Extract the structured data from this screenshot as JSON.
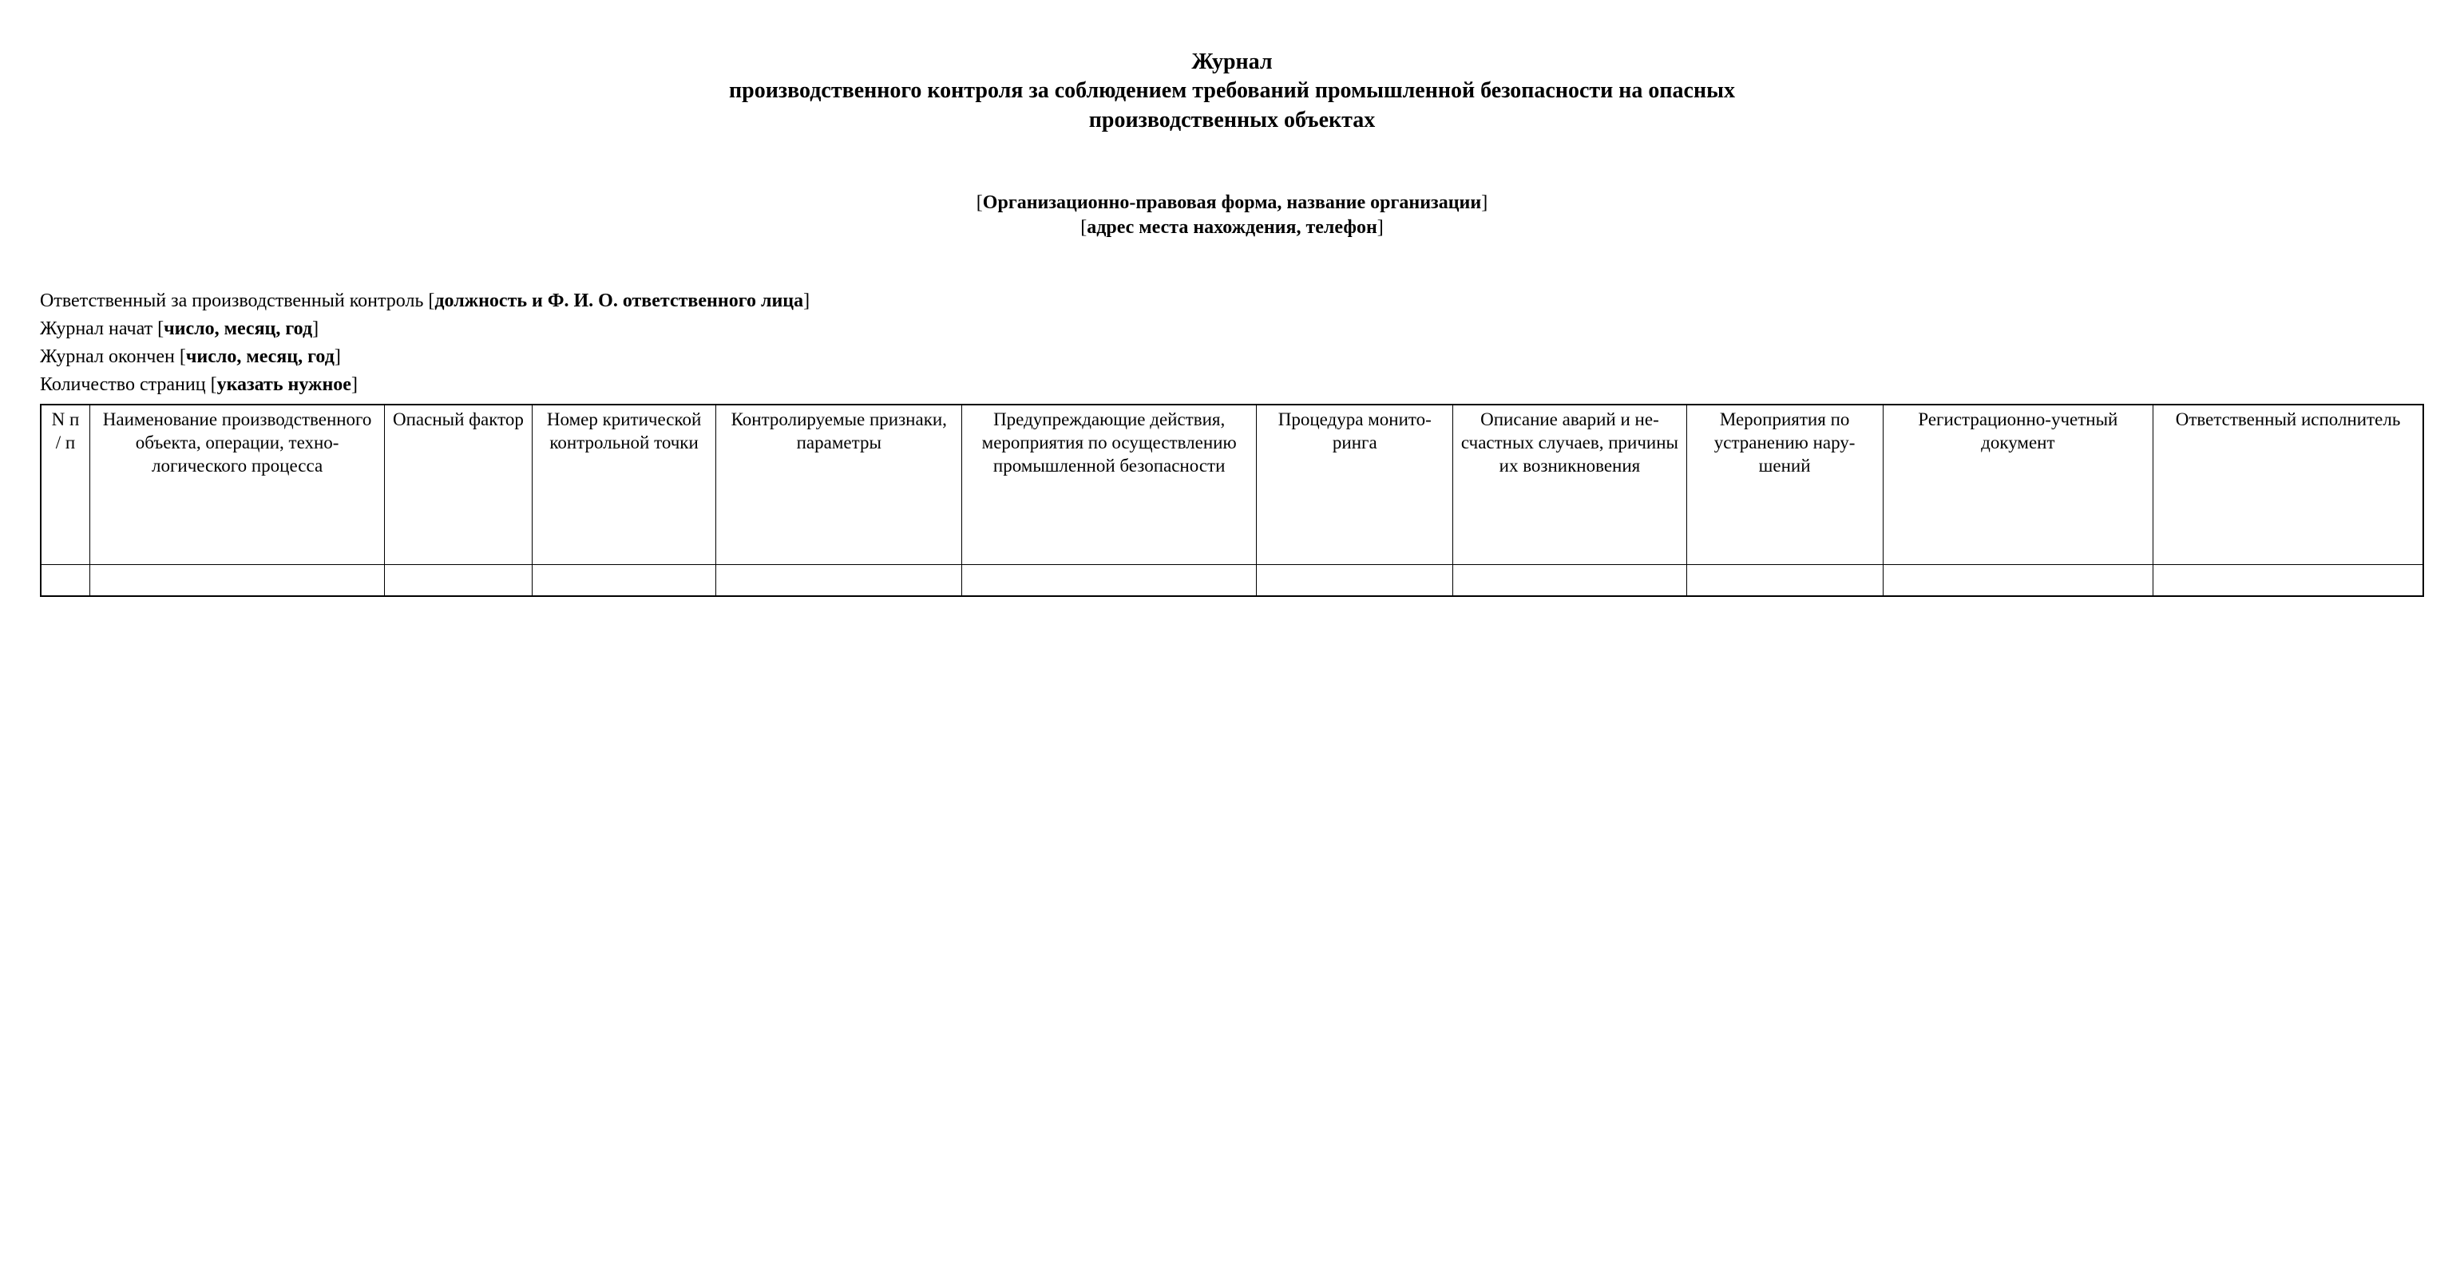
{
  "title": {
    "line1": "Журнал",
    "line2": "производственного контроля за соблюдением требований промышленной безопасности на опасных",
    "line3": "производственных объектах"
  },
  "subtitle": {
    "line1_prefix": "[",
    "line1_bold": "Организационно-правовая форма, название организации",
    "line1_suffix": "]",
    "line2_prefix": "[",
    "line2_bold": "адрес места нахождения, телефон",
    "line2_suffix": "]"
  },
  "meta": {
    "responsible_label": "Ответственный за производственный контроль [",
    "responsible_bold": "должность и Ф. И. О. ответственного лица",
    "responsible_suffix": "]",
    "started_label": "Журнал начат [",
    "started_bold": "число, месяц, год",
    "started_suffix": "]",
    "ended_label": "Журнал окончен [",
    "ended_bold": "число, месяц, год",
    "ended_suffix": "]",
    "pages_label": "Количество страниц [",
    "pages_bold": "указать нужное",
    "pages_suffix": "]"
  },
  "table": {
    "columns": [
      "N п / п",
      "Наименование производствен­ного объекта, операции, техно­логического процесса",
      "Опас­ный фактор",
      "Номер критиче­ской контроль­ной точки",
      "Контролируе­мые признаки, параметры",
      "Предупреждаю­щие действия, мероприятия по осуществлению промышленной безопасности",
      "Процедура монито­ринга",
      "Описание аварий и не­счастных случаев, причины их возникнове­ния",
      "Мероприя­тия по устране­нию нару­шений",
      "Регистраци­онно-учетный документ",
      "Ответствен­ный исполни­тель"
    ],
    "rows": [
      [
        "",
        "",
        "",
        "",
        "",
        "",
        "",
        "",
        "",
        "",
        ""
      ]
    ],
    "column_widths_pct": [
      2,
      12,
      6,
      7.5,
      10,
      12,
      8,
      9.5,
      8,
      11,
      11
    ],
    "border_color": "#000000",
    "background_color": "#ffffff",
    "header_fontsize": 23,
    "body_fontsize": 23
  },
  "typography": {
    "font_family": "Times New Roman",
    "title_fontsize": 28,
    "body_fontsize": 24,
    "text_color": "#000000"
  }
}
